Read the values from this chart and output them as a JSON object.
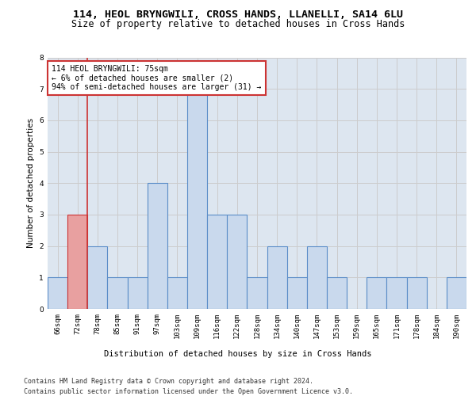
{
  "title1": "114, HEOL BRYNGWILI, CROSS HANDS, LLANELLI, SA14 6LU",
  "title2": "Size of property relative to detached houses in Cross Hands",
  "xlabel": "Distribution of detached houses by size in Cross Hands",
  "ylabel": "Number of detached properties",
  "footnote1": "Contains HM Land Registry data © Crown copyright and database right 2024.",
  "footnote2": "Contains public sector information licensed under the Open Government Licence v3.0.",
  "annotation_title": "114 HEOL BRYNGWILI: 75sqm",
  "annotation_line1": "← 6% of detached houses are smaller (2)",
  "annotation_line2": "94% of semi-detached houses are larger (31) →",
  "categories": [
    "66sqm",
    "72sqm",
    "78sqm",
    "85sqm",
    "91sqm",
    "97sqm",
    "103sqm",
    "109sqm",
    "116sqm",
    "122sqm",
    "128sqm",
    "134sqm",
    "140sqm",
    "147sqm",
    "153sqm",
    "159sqm",
    "165sqm",
    "171sqm",
    "178sqm",
    "184sqm",
    "190sqm"
  ],
  "values": [
    1,
    3,
    2,
    1,
    1,
    4,
    1,
    7,
    3,
    3,
    1,
    2,
    1,
    2,
    1,
    0,
    1,
    1,
    1,
    0,
    1
  ],
  "bar_color": "#c9d9ed",
  "bar_edge_color": "#5b8dc8",
  "highlight_bar_color": "#e8a0a0",
  "highlight_bar_edge_color": "#cc3333",
  "highlight_index": 1,
  "red_line_color": "#cc3333",
  "ylim": [
    0,
    8
  ],
  "yticks": [
    0,
    1,
    2,
    3,
    4,
    5,
    6,
    7,
    8
  ],
  "grid_color": "#cccccc",
  "bg_color": "#dde6f0",
  "annotation_box_edge": "#cc3333",
  "annotation_box_facecolor": "#ffffff",
  "title1_fontsize": 9.5,
  "title2_fontsize": 8.5,
  "axis_label_fontsize": 7.5,
  "tick_fontsize": 6.5,
  "annotation_fontsize": 7.0,
  "footnote_fontsize": 6.0
}
